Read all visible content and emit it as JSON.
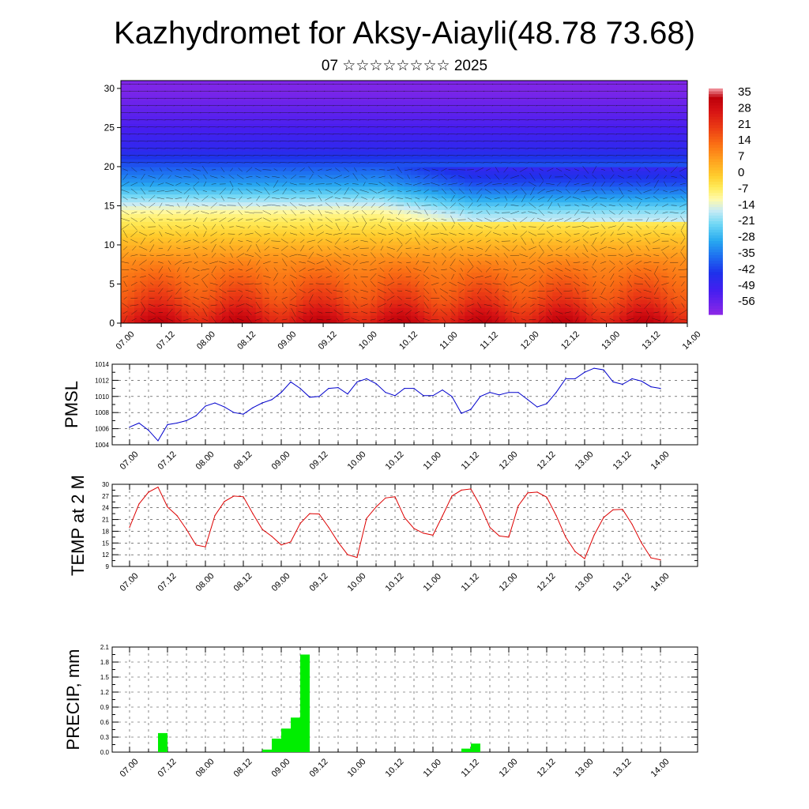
{
  "title": "Kazhydromet for Aksy-Aiayli(48.78 73.68)",
  "subtitle": "07 ☆☆☆☆☆☆☆☆ 2025",
  "time_ticks": [
    "07.00",
    "07.12",
    "08.00",
    "08.12",
    "09.00",
    "09.12",
    "10.00",
    "10.12",
    "11.00",
    "11.12",
    "12.00",
    "12.12",
    "13.00",
    "13.12",
    "14.00"
  ],
  "colorbar": {
    "labels": [
      "35",
      "28",
      "21",
      "14",
      "7",
      "0",
      "-7",
      "-14",
      "-21",
      "-28",
      "-35",
      "-42",
      "-49",
      "-56"
    ]
  },
  "chart_data": [
    {
      "type": "heatmap",
      "name": "temperature-wind cross section",
      "x_ticks": [
        "07.00",
        "07.12",
        "08.00",
        "08.12",
        "09.00",
        "09.12",
        "10.00",
        "10.12",
        "11.00",
        "11.12",
        "12.00",
        "12.12",
        "13.00",
        "13.12",
        "14.00"
      ],
      "y_ticks": [
        0,
        5,
        10,
        15,
        20,
        25,
        30
      ],
      "ylim": [
        0,
        31
      ],
      "value_range": [
        -60,
        38
      ],
      "note_levels": [
        {
          "level": 0,
          "value": 30
        },
        {
          "level": 3,
          "value": 20
        },
        {
          "level": 8,
          "value": 10
        },
        {
          "level": 14,
          "value": -8
        },
        {
          "level": 18,
          "value": -30
        },
        {
          "level": 22,
          "value": -45
        },
        {
          "level": 26,
          "value": -52
        },
        {
          "level": 30,
          "value": -58
        }
      ]
    },
    {
      "type": "line",
      "ylabel": "PMSL",
      "ylim": [
        1004,
        1014
      ],
      "y_ticks": [
        1004,
        1006,
        1008,
        1010,
        1012,
        1014
      ],
      "color": "#0000cc",
      "x_ticks": [
        "07.00",
        "07.12",
        "08.00",
        "08.12",
        "09.00",
        "09.12",
        "10.00",
        "10.12",
        "11.00",
        "11.12",
        "12.00",
        "12.12",
        "13.00",
        "13.12",
        "14.00"
      ],
      "x_hours": [
        0,
        3,
        6,
        9,
        12,
        15,
        18,
        21,
        24,
        27,
        30,
        33,
        36,
        39,
        42,
        45,
        48,
        51,
        54,
        57,
        60,
        63,
        66,
        69,
        72,
        75,
        78,
        81,
        84,
        87,
        90,
        93,
        96,
        99,
        102,
        105,
        108,
        111,
        114,
        117,
        120,
        123,
        126,
        129,
        132,
        135,
        138,
        141,
        144,
        147,
        150,
        153,
        156,
        159,
        162,
        165,
        168
      ],
      "values": [
        1006.2,
        1006.7,
        1005.8,
        1004.5,
        1006.5,
        1006.7,
        1007.0,
        1007.6,
        1008.8,
        1009.2,
        1008.7,
        1008.0,
        1007.8,
        1008.6,
        1009.2,
        1009.6,
        1010.5,
        1011.8,
        1011.0,
        1009.9,
        1010.0,
        1011.0,
        1011.1,
        1010.3,
        1011.8,
        1012.2,
        1011.6,
        1010.5,
        1010.1,
        1011.0,
        1011.0,
        1010.1,
        1010.1,
        1010.8,
        1010.0,
        1007.9,
        1008.4,
        1010.0,
        1010.5,
        1010.2,
        1010.5,
        1010.5,
        1009.6,
        1008.7,
        1009.1,
        1010.5,
        1012.2,
        1012.2,
        1013.0,
        1013.5,
        1013.3,
        1011.8,
        1011.5,
        1012.2,
        1011.9,
        1011.2,
        1011.0
      ]
    },
    {
      "type": "line",
      "ylabel": "TEMP at 2 M",
      "ylim": [
        9,
        30
      ],
      "y_ticks": [
        9,
        12,
        15,
        18,
        21,
        24,
        27,
        30
      ],
      "color": "#dd0000",
      "x_ticks": [
        "07.00",
        "07.12",
        "08.00",
        "08.12",
        "09.00",
        "09.12",
        "10.00",
        "10.12",
        "11.00",
        "11.12",
        "12.00",
        "12.12",
        "13.00",
        "13.12",
        "14.00"
      ],
      "x_hours": [
        0,
        3,
        6,
        9,
        12,
        15,
        18,
        21,
        24,
        27,
        30,
        33,
        36,
        39,
        42,
        45,
        48,
        51,
        54,
        57,
        60,
        63,
        66,
        69,
        72,
        75,
        78,
        81,
        84,
        87,
        90,
        93,
        96,
        99,
        102,
        105,
        108,
        111,
        114,
        117,
        120,
        123,
        126,
        129,
        132,
        135,
        138,
        141,
        144,
        147,
        150,
        153,
        156,
        159,
        162,
        165,
        168
      ],
      "values": [
        19,
        25,
        28,
        29.3,
        24.2,
        22,
        18.5,
        14.5,
        14,
        22,
        25.6,
        27,
        26.8,
        22.5,
        18.5,
        16.7,
        14.5,
        15.3,
        20,
        22.5,
        22.4,
        19,
        15.2,
        12,
        11.3,
        21.3,
        24.2,
        26.5,
        26.8,
        21.5,
        18.7,
        17.5,
        17,
        21.9,
        27,
        28.5,
        28.8,
        24.5,
        19,
        16.8,
        16.5,
        24.5,
        27.8,
        28,
        26.7,
        22,
        16.5,
        12.8,
        11,
        17,
        21.5,
        23.5,
        23.6,
        19.8,
        15,
        11.2,
        10.7
      ]
    },
    {
      "type": "bar",
      "ylabel": "PRECIP, mm",
      "ylim": [
        0,
        2.1
      ],
      "y_ticks": [
        0.0,
        0.3,
        0.6,
        0.9,
        1.2,
        1.5,
        1.8,
        2.1
      ],
      "color": "#00ee00",
      "x_ticks": [
        "07.00",
        "07.12",
        "08.00",
        "08.12",
        "09.00",
        "09.12",
        "10.00",
        "10.12",
        "11.00",
        "11.12",
        "12.00",
        "12.12",
        "13.00",
        "13.12",
        "14.00"
      ],
      "bars": [
        {
          "start_hour": 9,
          "end_hour": 12,
          "value": 0.38
        },
        {
          "start_hour": 42,
          "end_hour": 45,
          "value": 0.05
        },
        {
          "start_hour": 45,
          "end_hour": 48,
          "value": 0.27
        },
        {
          "start_hour": 48,
          "end_hour": 51,
          "value": 0.47
        },
        {
          "start_hour": 51,
          "end_hour": 54,
          "value": 0.69
        },
        {
          "start_hour": 54,
          "end_hour": 57,
          "value": 1.95
        },
        {
          "start_hour": 105,
          "end_hour": 108,
          "value": 0.07
        },
        {
          "start_hour": 108,
          "end_hour": 111,
          "value": 0.17
        }
      ]
    }
  ]
}
